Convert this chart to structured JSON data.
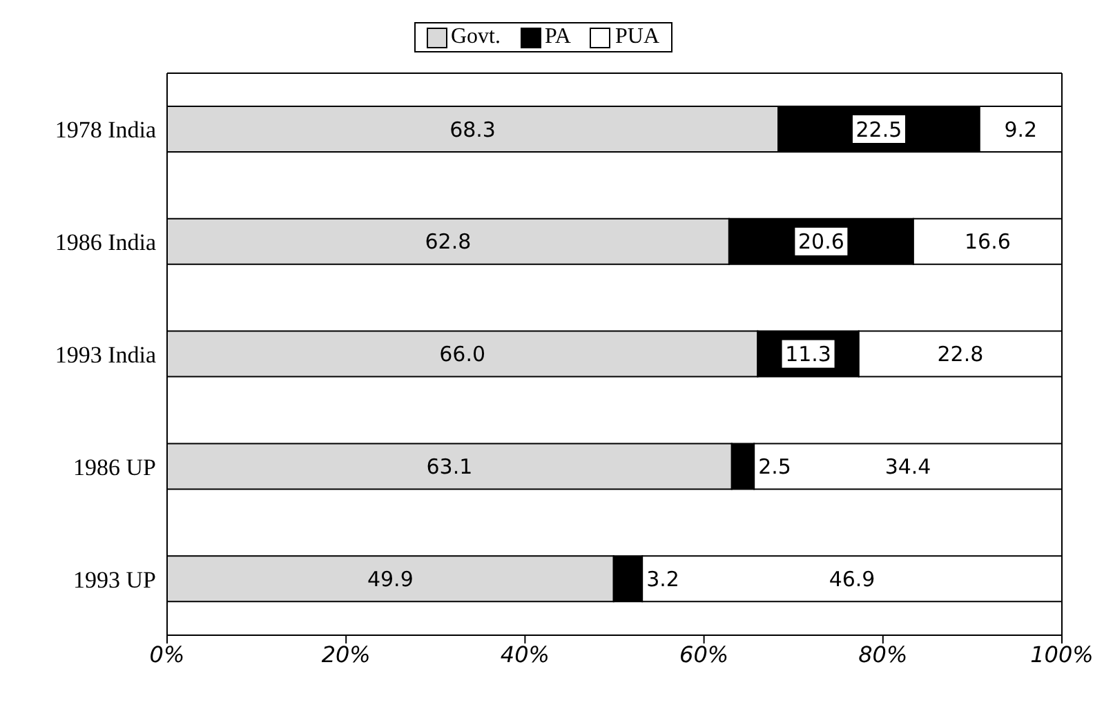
{
  "chart_data": {
    "type": "bar",
    "orientation": "horizontal",
    "stacked": true,
    "categories": [
      "1978 India",
      "1986 India",
      "1993 India",
      "1986 UP",
      "1993 UP"
    ],
    "series": [
      {
        "name": "Govt.",
        "color": "#d9d9d9",
        "values": [
          68.3,
          62.8,
          66.0,
          63.1,
          49.9
        ],
        "value_labels": [
          "68.3",
          "62.8",
          "66.0",
          "63.1",
          "49.9"
        ]
      },
      {
        "name": "PA",
        "color": "#000000",
        "values": [
          22.5,
          20.6,
          11.3,
          2.5,
          3.2
        ],
        "value_labels": [
          "22.5",
          "20.6",
          "11.3",
          "2.5",
          "3.2"
        ]
      },
      {
        "name": "PUA",
        "color": "#ffffff",
        "values": [
          9.2,
          16.6,
          22.8,
          34.4,
          46.9
        ],
        "value_labels": [
          "9.2",
          "16.6",
          "22.8",
          "34.4",
          "46.9"
        ]
      }
    ],
    "xlim": [
      0,
      100
    ],
    "xticks": [
      {
        "value": 0,
        "label": "0%"
      },
      {
        "value": 20,
        "label": "20%"
      },
      {
        "value": 40,
        "label": "40%"
      },
      {
        "value": 60,
        "label": "60%"
      },
      {
        "value": 80,
        "label": "80%"
      },
      {
        "value": 100,
        "label": "100%"
      }
    ],
    "legend": "top"
  }
}
